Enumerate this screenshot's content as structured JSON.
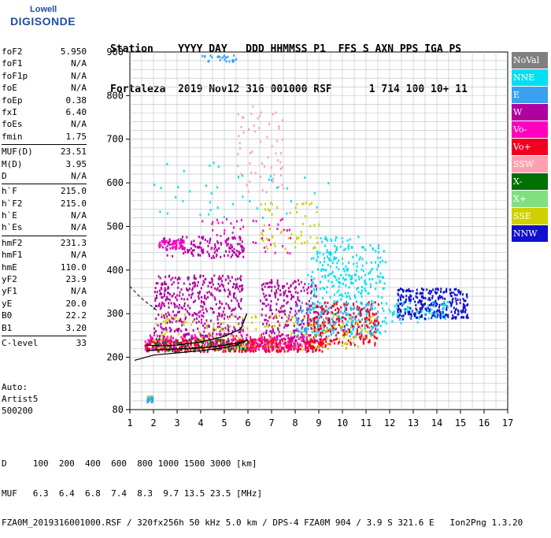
{
  "logo": {
    "line1": "Lowell",
    "line2": "DIGISONDE"
  },
  "header": {
    "line1": "Station    YYYY DAY   DDD HHMMSS P1  FFS S AXN PPS IGA PS",
    "line2": "Fortaleza  2019 Nov12 316 001000 RSF      1 714 100 10+ 11"
  },
  "params": [
    [
      {
        "name": "foF2",
        "value": "5.950"
      },
      {
        "name": "foF1",
        "value": "N/A"
      },
      {
        "name": "foF1p",
        "value": "N/A"
      },
      {
        "name": "foE",
        "value": "N/A"
      },
      {
        "name": "foEp",
        "value": "0.38"
      },
      {
        "name": "fxI",
        "value": "6.40"
      },
      {
        "name": "foEs",
        "value": "N/A"
      },
      {
        "name": "fmin",
        "value": "1.75"
      }
    ],
    [
      {
        "name": "MUF(D)",
        "value": "23.51"
      },
      {
        "name": "M(D)",
        "value": "3.95"
      },
      {
        "name": "D",
        "value": "N/A"
      }
    ],
    [
      {
        "name": "h`F",
        "value": "215.0"
      },
      {
        "name": "h`F2",
        "value": "215.0"
      },
      {
        "name": "h`E",
        "value": "N/A"
      },
      {
        "name": "h`Es",
        "value": "N/A"
      }
    ],
    [
      {
        "name": "hmF2",
        "value": "231.3"
      },
      {
        "name": "hmF1",
        "value": "N/A"
      },
      {
        "name": "hmE",
        "value": "110.0"
      },
      {
        "name": "yF2",
        "value": "23.9"
      },
      {
        "name": "yF1",
        "value": "N/A"
      },
      {
        "name": "yE",
        "value": "20.0"
      },
      {
        "name": "B0",
        "value": "22.2"
      },
      {
        "name": "B1",
        "value": "3.20"
      }
    ],
    [
      {
        "name": "C-level",
        "value": "33"
      }
    ]
  ],
  "auto": {
    "line1": "Auto:",
    "line2": "Artist5",
    "line3": "500200"
  },
  "legend": [
    {
      "label": "NoVal",
      "color": "#808080"
    },
    {
      "label": "NNE",
      "color": "#00e0f0"
    },
    {
      "label": "E",
      "color": "#3aa0f0"
    },
    {
      "label": "W",
      "color": "#b000a0"
    },
    {
      "label": "Vo-",
      "color": "#ff00c0"
    },
    {
      "label": "Vo+",
      "color": "#f00020"
    },
    {
      "label": "SSW",
      "color": "#ffa0b0"
    },
    {
      "label": "X-",
      "color": "#007000"
    },
    {
      "label": "X+",
      "color": "#80e080"
    },
    {
      "label": "SSE",
      "color": "#d0d000"
    },
    {
      "label": "NNW",
      "color": "#1010d0"
    }
  ],
  "footer": {
    "line1": "D     100  200  400  600  800 1000 1500 3000 [km]",
    "line2": "MUF   6.3  6.4  6.8  7.4  8.3  9.7 13.5 23.5 [MHz]",
    "line3": "FZA0M_2019316001000.RSF / 320fx256h 50 kHz 5.0 km / DPS-4 FZA0M 904 / 3.9 S 321.6 E   Ion2Png 1.3.20"
  },
  "chart_data": {
    "type": "scatter",
    "x_range": [
      1,
      17
    ],
    "y_range": [
      80,
      900
    ],
    "x_ticks": [
      1,
      2,
      3,
      4,
      5,
      6,
      7,
      8,
      9,
      10,
      11,
      12,
      13,
      14,
      15,
      16,
      17
    ],
    "y_ticks": [
      80,
      200,
      300,
      400,
      500,
      600,
      700,
      800,
      900
    ],
    "grid": true,
    "legend_position": "right",
    "profile_trace": {
      "x": [
        1.2,
        2.0,
        3.0,
        4.0,
        5.0,
        5.5,
        5.9
      ],
      "y": [
        193,
        205,
        210,
        215,
        222,
        228,
        236
      ]
    },
    "auto_trace_lower": {
      "x": [
        1.7,
        2.5,
        3.5,
        4.5,
        5.5,
        6.0
      ],
      "y": [
        215,
        218,
        220,
        224,
        232,
        240
      ]
    },
    "auto_trace_upper": {
      "x": [
        1.7,
        2.3,
        3.0,
        4.0,
        5.0,
        5.7,
        5.95
      ],
      "y": [
        228,
        226,
        228,
        235,
        248,
        265,
        300
      ]
    },
    "scale_height_trace": {
      "x": [
        1.0,
        1.3,
        1.6,
        1.9,
        2.2
      ],
      "y": [
        363,
        345,
        330,
        318,
        305
      ]
    },
    "clusters": [
      {
        "color_key": "Vo+",
        "x": [
          1.6,
          9.3
        ],
        "y": [
          215,
          245
        ],
        "n": 520
      },
      {
        "color_key": "Vo-",
        "x": [
          1.6,
          8.5
        ],
        "y": [
          220,
          255
        ],
        "n": 260
      },
      {
        "color_key": "W",
        "x": [
          2.0,
          5.8
        ],
        "y": [
          250,
          390
        ],
        "n": 420
      },
      {
        "color_key": "W",
        "x": [
          2.3,
          5.8
        ],
        "y": [
          430,
          480
        ],
        "n": 140
      },
      {
        "color_key": "Vo-",
        "x": [
          2.2,
          3.3
        ],
        "y": [
          450,
          470
        ],
        "n": 60
      },
      {
        "color_key": "W",
        "x": [
          6.5,
          9.0
        ],
        "y": [
          240,
          380
        ],
        "n": 240
      },
      {
        "color_key": "NNE",
        "x": [
          8.5,
          11.8
        ],
        "y": [
          250,
          460
        ],
        "n": 260
      },
      {
        "color_key": "E",
        "x": [
          8.0,
          11.5
        ],
        "y": [
          250,
          330
        ],
        "n": 180
      },
      {
        "color_key": "Vo+",
        "x": [
          8.5,
          11.5
        ],
        "y": [
          230,
          330
        ],
        "n": 220
      },
      {
        "color_key": "SSE",
        "x": [
          2.0,
          11.5
        ],
        "y": [
          220,
          300
        ],
        "n": 180
      },
      {
        "color_key": "X-",
        "x": [
          2.0,
          6.0
        ],
        "y": [
          215,
          245
        ],
        "n": 80
      },
      {
        "color_key": "NNW",
        "x": [
          12.3,
          15.3
        ],
        "y": [
          290,
          360
        ],
        "n": 300
      },
      {
        "color_key": "NNE",
        "x": [
          11.5,
          14.5
        ],
        "y": [
          280,
          330
        ],
        "n": 60
      },
      {
        "color_key": "SSW",
        "x": [
          5.5,
          7.5
        ],
        "y": [
          580,
          780
        ],
        "n": 60
      },
      {
        "color_key": "SSE",
        "x": [
          6.5,
          9.0
        ],
        "y": [
          450,
          560
        ],
        "n": 60
      },
      {
        "color_key": "Vo-",
        "x": [
          4.0,
          8.0
        ],
        "y": [
          440,
          520
        ],
        "n": 50
      },
      {
        "color_key": "NNE",
        "x": [
          9.0,
          11.0
        ],
        "y": [
          340,
          480
        ],
        "n": 80
      },
      {
        "color_key": "E",
        "x": [
          4.0,
          5.5
        ],
        "y": [
          880,
          895
        ],
        "n": 25
      },
      {
        "color_key": "X+",
        "x": [
          1.7,
          1.95
        ],
        "y": [
          100,
          115
        ],
        "n": 25
      },
      {
        "color_key": "E",
        "x": [
          1.7,
          1.95
        ],
        "y": [
          98,
          112
        ],
        "n": 18
      },
      {
        "color_key": "NNE",
        "x": [
          2.0,
          9.5
        ],
        "y": [
          520,
          650
        ],
        "n": 40
      }
    ]
  }
}
